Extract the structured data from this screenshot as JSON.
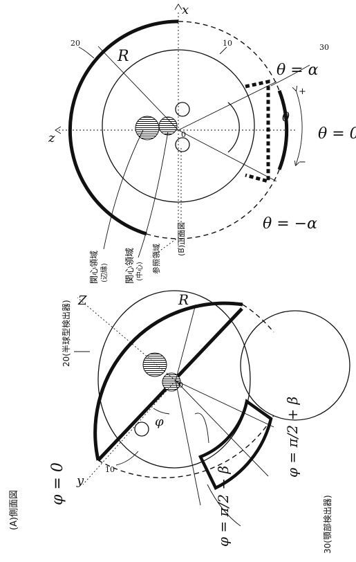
{
  "side_view": {
    "caption": "(A)側面図",
    "detector_label": "20(半球型検出器)",
    "jaw_detector_label": "30(顎部検出器)",
    "head_ref": "10",
    "phi_zero": "φ = 0",
    "phi_minus": "φ = π/2 − β",
    "phi_plus": "φ = π/2 + β",
    "phi_arc": "φ",
    "origin": "0",
    "axis_y": "y",
    "axis_z": "Z",
    "radius": "R"
  },
  "front_view": {
    "caption": "(B)正面図",
    "detector_ref": "20",
    "head_ref": "10",
    "jaw_ref": "30",
    "axis_x": "x",
    "axis_z": "z",
    "radius": "R",
    "origin": "0",
    "theta_alpha": "θ = α",
    "theta_zero": "θ = 0",
    "theta_minus_alpha": "θ = −α",
    "theta_arc": "θ",
    "plus": "+",
    "minus": "−",
    "roi_edge": "関心領域",
    "roi_edge_sub": "(辺縁)",
    "roi_center": "関心領域",
    "roi_center_sub": "(中心)",
    "reference_region": "参照領域"
  }
}
